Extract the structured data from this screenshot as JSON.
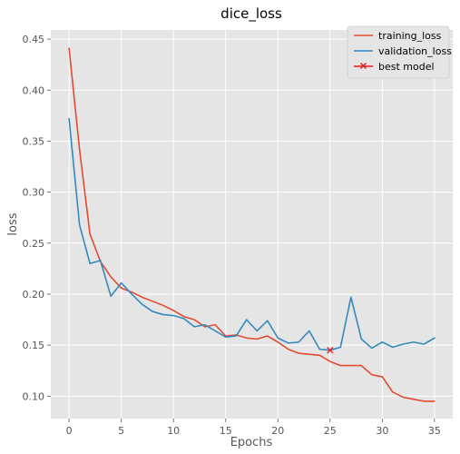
{
  "chart_data": {
    "type": "line",
    "title": "dice_loss",
    "xlabel": "Epochs",
    "ylabel": "loss",
    "xlim": [
      -1.75,
      36.75
    ],
    "ylim": [
      0.078,
      0.459
    ],
    "xticks": [
      0,
      5,
      10,
      15,
      20,
      25,
      30,
      35
    ],
    "yticks": [
      0.1,
      0.15,
      0.2,
      0.25,
      0.3,
      0.35,
      0.4,
      0.45
    ],
    "grid": true,
    "legend_position": "top-right",
    "x": [
      0,
      1,
      2,
      3,
      4,
      5,
      6,
      7,
      8,
      9,
      10,
      11,
      12,
      13,
      14,
      15,
      16,
      17,
      18,
      19,
      20,
      21,
      22,
      23,
      24,
      25,
      26,
      27,
      28,
      29,
      30,
      31,
      32,
      33,
      34,
      35
    ],
    "series": [
      {
        "name": "training_loss",
        "color": "#e24a33",
        "values": [
          0.441,
          0.342,
          0.259,
          0.232,
          0.217,
          0.206,
          0.202,
          0.197,
          0.193,
          0.189,
          0.184,
          0.178,
          0.175,
          0.168,
          0.17,
          0.159,
          0.16,
          0.157,
          0.156,
          0.159,
          0.153,
          0.146,
          0.142,
          0.141,
          0.14,
          0.134,
          0.13,
          0.13,
          0.13,
          0.121,
          0.119,
          0.104,
          0.099,
          0.097,
          0.095,
          0.095
        ]
      },
      {
        "name": "validation_loss",
        "color": "#348abd",
        "values": [
          0.372,
          0.268,
          0.23,
          0.233,
          0.198,
          0.211,
          0.2,
          0.19,
          0.183,
          0.18,
          0.179,
          0.176,
          0.168,
          0.17,
          0.164,
          0.158,
          0.159,
          0.175,
          0.164,
          0.174,
          0.157,
          0.152,
          0.153,
          0.164,
          0.146,
          0.145,
          0.148,
          0.197,
          0.156,
          0.147,
          0.153,
          0.148,
          0.151,
          0.153,
          0.151,
          0.157
        ]
      }
    ],
    "best_model": {
      "name": "best model",
      "x": 25,
      "y": 0.145,
      "color": "#e8191c",
      "marker": "x"
    },
    "style": {
      "plot_background": "#e5e5e5",
      "grid_color": "#ffffff"
    }
  }
}
